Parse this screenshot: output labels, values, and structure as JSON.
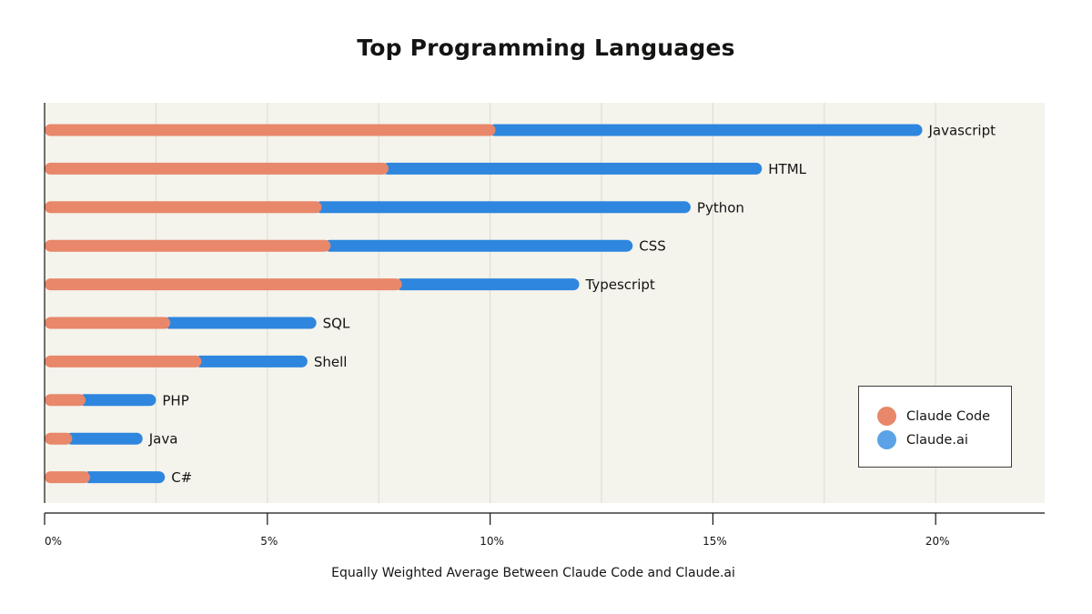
{
  "chart_data": {
    "type": "bar",
    "orientation": "horizontal",
    "stacked": true,
    "title": "Top Programming Languages",
    "xlabel": "Equally Weighted Average Between Claude Code and Claude.ai",
    "ylabel": "",
    "xlim": [
      0,
      22.5
    ],
    "xticks": [
      0,
      5,
      10,
      15,
      20
    ],
    "xtick_labels": [
      "0%",
      "5%",
      "10%",
      "15%",
      "20%"
    ],
    "grid": true,
    "legend_position": "bottom-right",
    "categories": [
      "Javascript",
      "HTML",
      "Python",
      "CSS",
      "Typescript",
      "SQL",
      "Shell",
      "PHP",
      "Java",
      "C#"
    ],
    "series": [
      {
        "name": "Claude Code",
        "color": "#E8876A",
        "values": [
          10.1,
          7.7,
          6.2,
          6.4,
          8.0,
          2.8,
          3.5,
          0.9,
          0.6,
          1.0
        ]
      },
      {
        "name": "Claude.ai",
        "color": "#2E86DE",
        "values": [
          9.6,
          8.4,
          8.3,
          6.8,
          4.0,
          3.3,
          2.4,
          1.6,
          1.6,
          1.7
        ]
      }
    ],
    "plot_background": "#F4F3EC",
    "grid_color": "#DDDBD3"
  }
}
